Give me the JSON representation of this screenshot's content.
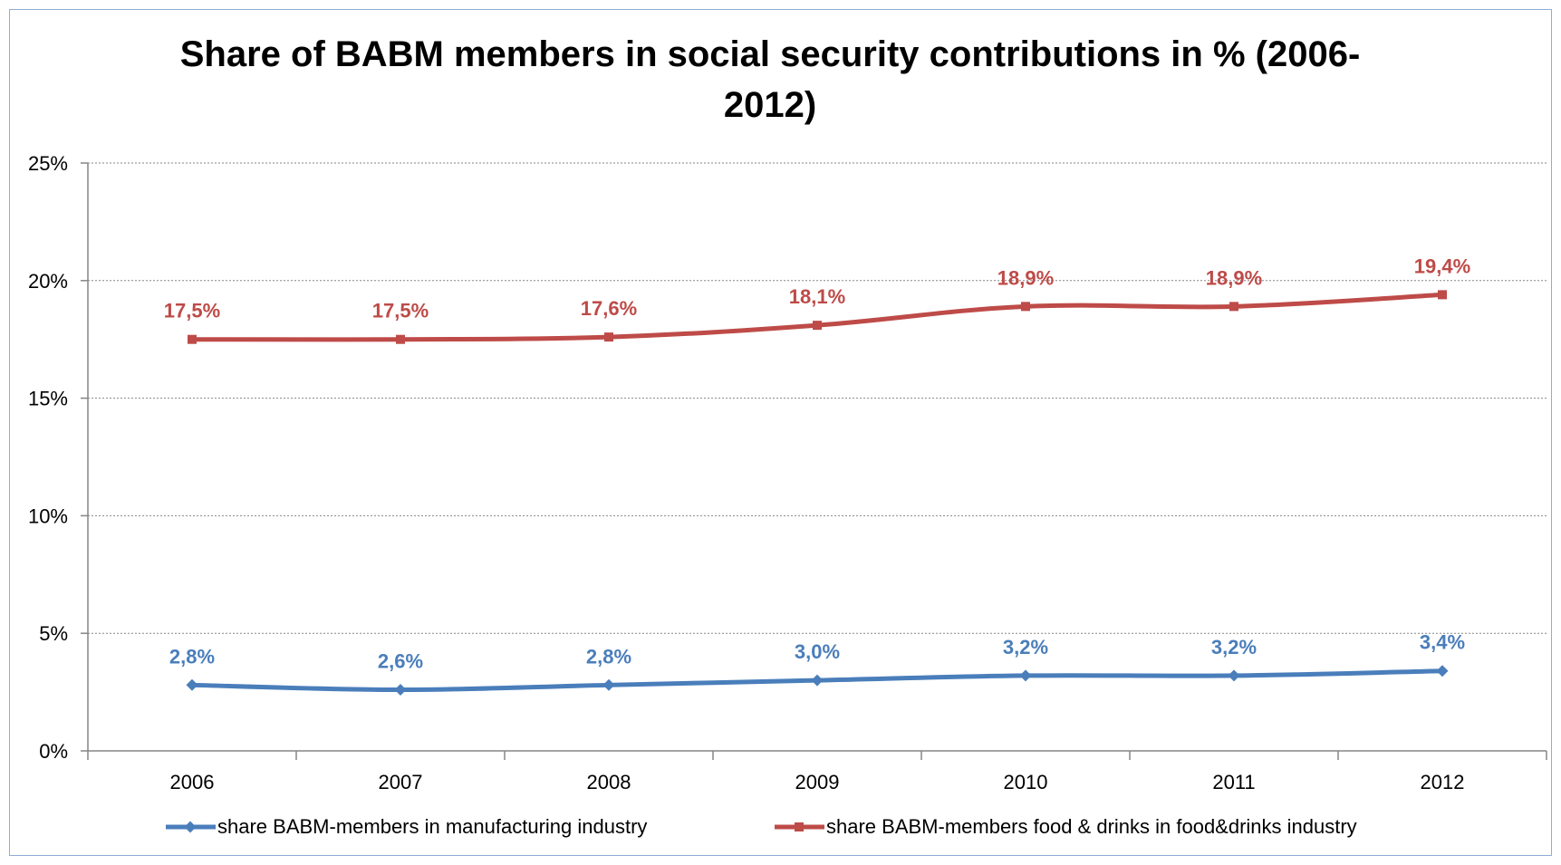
{
  "chart_data": {
    "type": "line",
    "title": "Share of BABM members in social security contributions in % (2006-2012)",
    "title_lines": [
      "Share of BABM members in social security contributions in % (2006-",
      "2012)"
    ],
    "xlabel": "",
    "ylabel": "",
    "categories": [
      "2006",
      "2007",
      "2008",
      "2009",
      "2010",
      "2011",
      "2012"
    ],
    "ylim": [
      0,
      25
    ],
    "yticks": [
      0,
      5,
      10,
      15,
      20,
      25
    ],
    "ytick_labels": [
      "0%",
      "5%",
      "10%",
      "15%",
      "20%",
      "25%"
    ],
    "grid": "horizontal dotted",
    "legend_position": "bottom",
    "series": [
      {
        "name": "share BABM-members in manufacturing industry",
        "values": [
          2.8,
          2.6,
          2.8,
          3.0,
          3.2,
          3.2,
          3.4
        ],
        "labels": [
          "2,8%",
          "2,6%",
          "2,8%",
          "3,0%",
          "3,2%",
          "3,2%",
          "3,4%"
        ],
        "color": "#4a7ebb",
        "marker": "diamond"
      },
      {
        "name": "share BABM-members food & drinks in food&drinks industry",
        "values": [
          17.5,
          17.5,
          17.6,
          18.1,
          18.9,
          18.9,
          19.4
        ],
        "labels": [
          "17,5%",
          "17,5%",
          "17,6%",
          "18,1%",
          "18,9%",
          "18,9%",
          "19,4%"
        ],
        "color": "#be4b48",
        "marker": "square"
      }
    ]
  }
}
